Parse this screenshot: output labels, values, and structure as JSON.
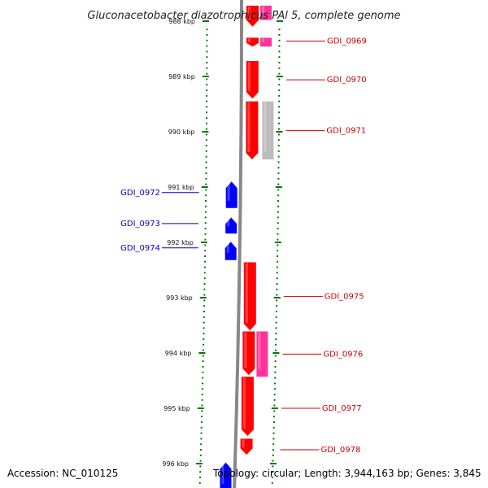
{
  "title": "Gluconacetobacter diazotrophicus PAl 5, complete genome",
  "footer": {
    "accession": "Accession: NC_010125",
    "topology": "Topology: circular; Length: 3,944,163 bp; Genes: 3,845"
  },
  "colors": {
    "forward_cds": "#ff0000",
    "reverse_cds": "#0000ff",
    "forward_label": "#cc0000",
    "reverse_label": "#0000cc",
    "rna_feature": "#ff3399",
    "other_feature": "#aaaaaa",
    "tick": "#007700",
    "backbone": "#888888"
  },
  "ticks": [
    {
      "label": "988 kbp",
      "kbp": 988
    },
    {
      "label": "989 kbp",
      "kbp": 989
    },
    {
      "label": "990 kbp",
      "kbp": 990
    },
    {
      "label": "991 kbp",
      "kbp": 991
    },
    {
      "label": "992 kbp",
      "kbp": 992
    },
    {
      "label": "993 kbp",
      "kbp": 993
    },
    {
      "label": "994 kbp",
      "kbp": 994
    },
    {
      "label": "995 kbp",
      "kbp": 995
    },
    {
      "label": "996 kbp",
      "kbp": 996
    }
  ],
  "features": [
    {
      "kind": "forward",
      "start": 987.72,
      "end": 988.1
    },
    {
      "kind": "rna",
      "start": 987.72,
      "end": 987.98
    },
    {
      "kind": "forward",
      "start": 988.3,
      "end": 988.46
    },
    {
      "kind": "rna",
      "start": 988.3,
      "end": 988.46
    },
    {
      "kind": "forward",
      "start": 988.72,
      "end": 989.4
    },
    {
      "kind": "forward",
      "start": 989.45,
      "end": 990.5
    },
    {
      "kind": "other",
      "start": 989.45,
      "end": 990.5
    },
    {
      "kind": "reverse",
      "start": 990.9,
      "end": 991.38
    },
    {
      "kind": "reverse",
      "start": 991.55,
      "end": 991.84
    },
    {
      "kind": "reverse",
      "start": 991.99,
      "end": 992.32
    },
    {
      "kind": "forward",
      "start": 992.36,
      "end": 993.59
    },
    {
      "kind": "forward",
      "start": 993.61,
      "end": 994.4
    },
    {
      "kind": "rna",
      "start": 993.61,
      "end": 994.43
    },
    {
      "kind": "forward",
      "start": 994.43,
      "end": 995.5
    },
    {
      "kind": "forward",
      "start": 995.55,
      "end": 995.84
    },
    {
      "kind": "reverse",
      "start": 995.98,
      "end": 996.5
    }
  ],
  "gene_labels": [
    {
      "name": "GDI_0969",
      "strand": "forward",
      "kbp": 988.36
    },
    {
      "name": "GDI_0970",
      "strand": "forward",
      "kbp": 989.06
    },
    {
      "name": "GDI_0971",
      "strand": "forward",
      "kbp": 989.98
    },
    {
      "name": "GDI_0972",
      "strand": "reverse",
      "kbp": 991.1
    },
    {
      "name": "GDI_0973",
      "strand": "reverse",
      "kbp": 991.66
    },
    {
      "name": "GDI_0974",
      "strand": "reverse",
      "kbp": 992.1
    },
    {
      "name": "GDI_0975",
      "strand": "forward",
      "kbp": 992.98
    },
    {
      "name": "GDI_0976",
      "strand": "forward",
      "kbp": 994.02
    },
    {
      "name": "GDI_0977",
      "strand": "forward",
      "kbp": 995.0
    },
    {
      "name": "GDI_0978",
      "strand": "forward",
      "kbp": 995.75
    }
  ]
}
